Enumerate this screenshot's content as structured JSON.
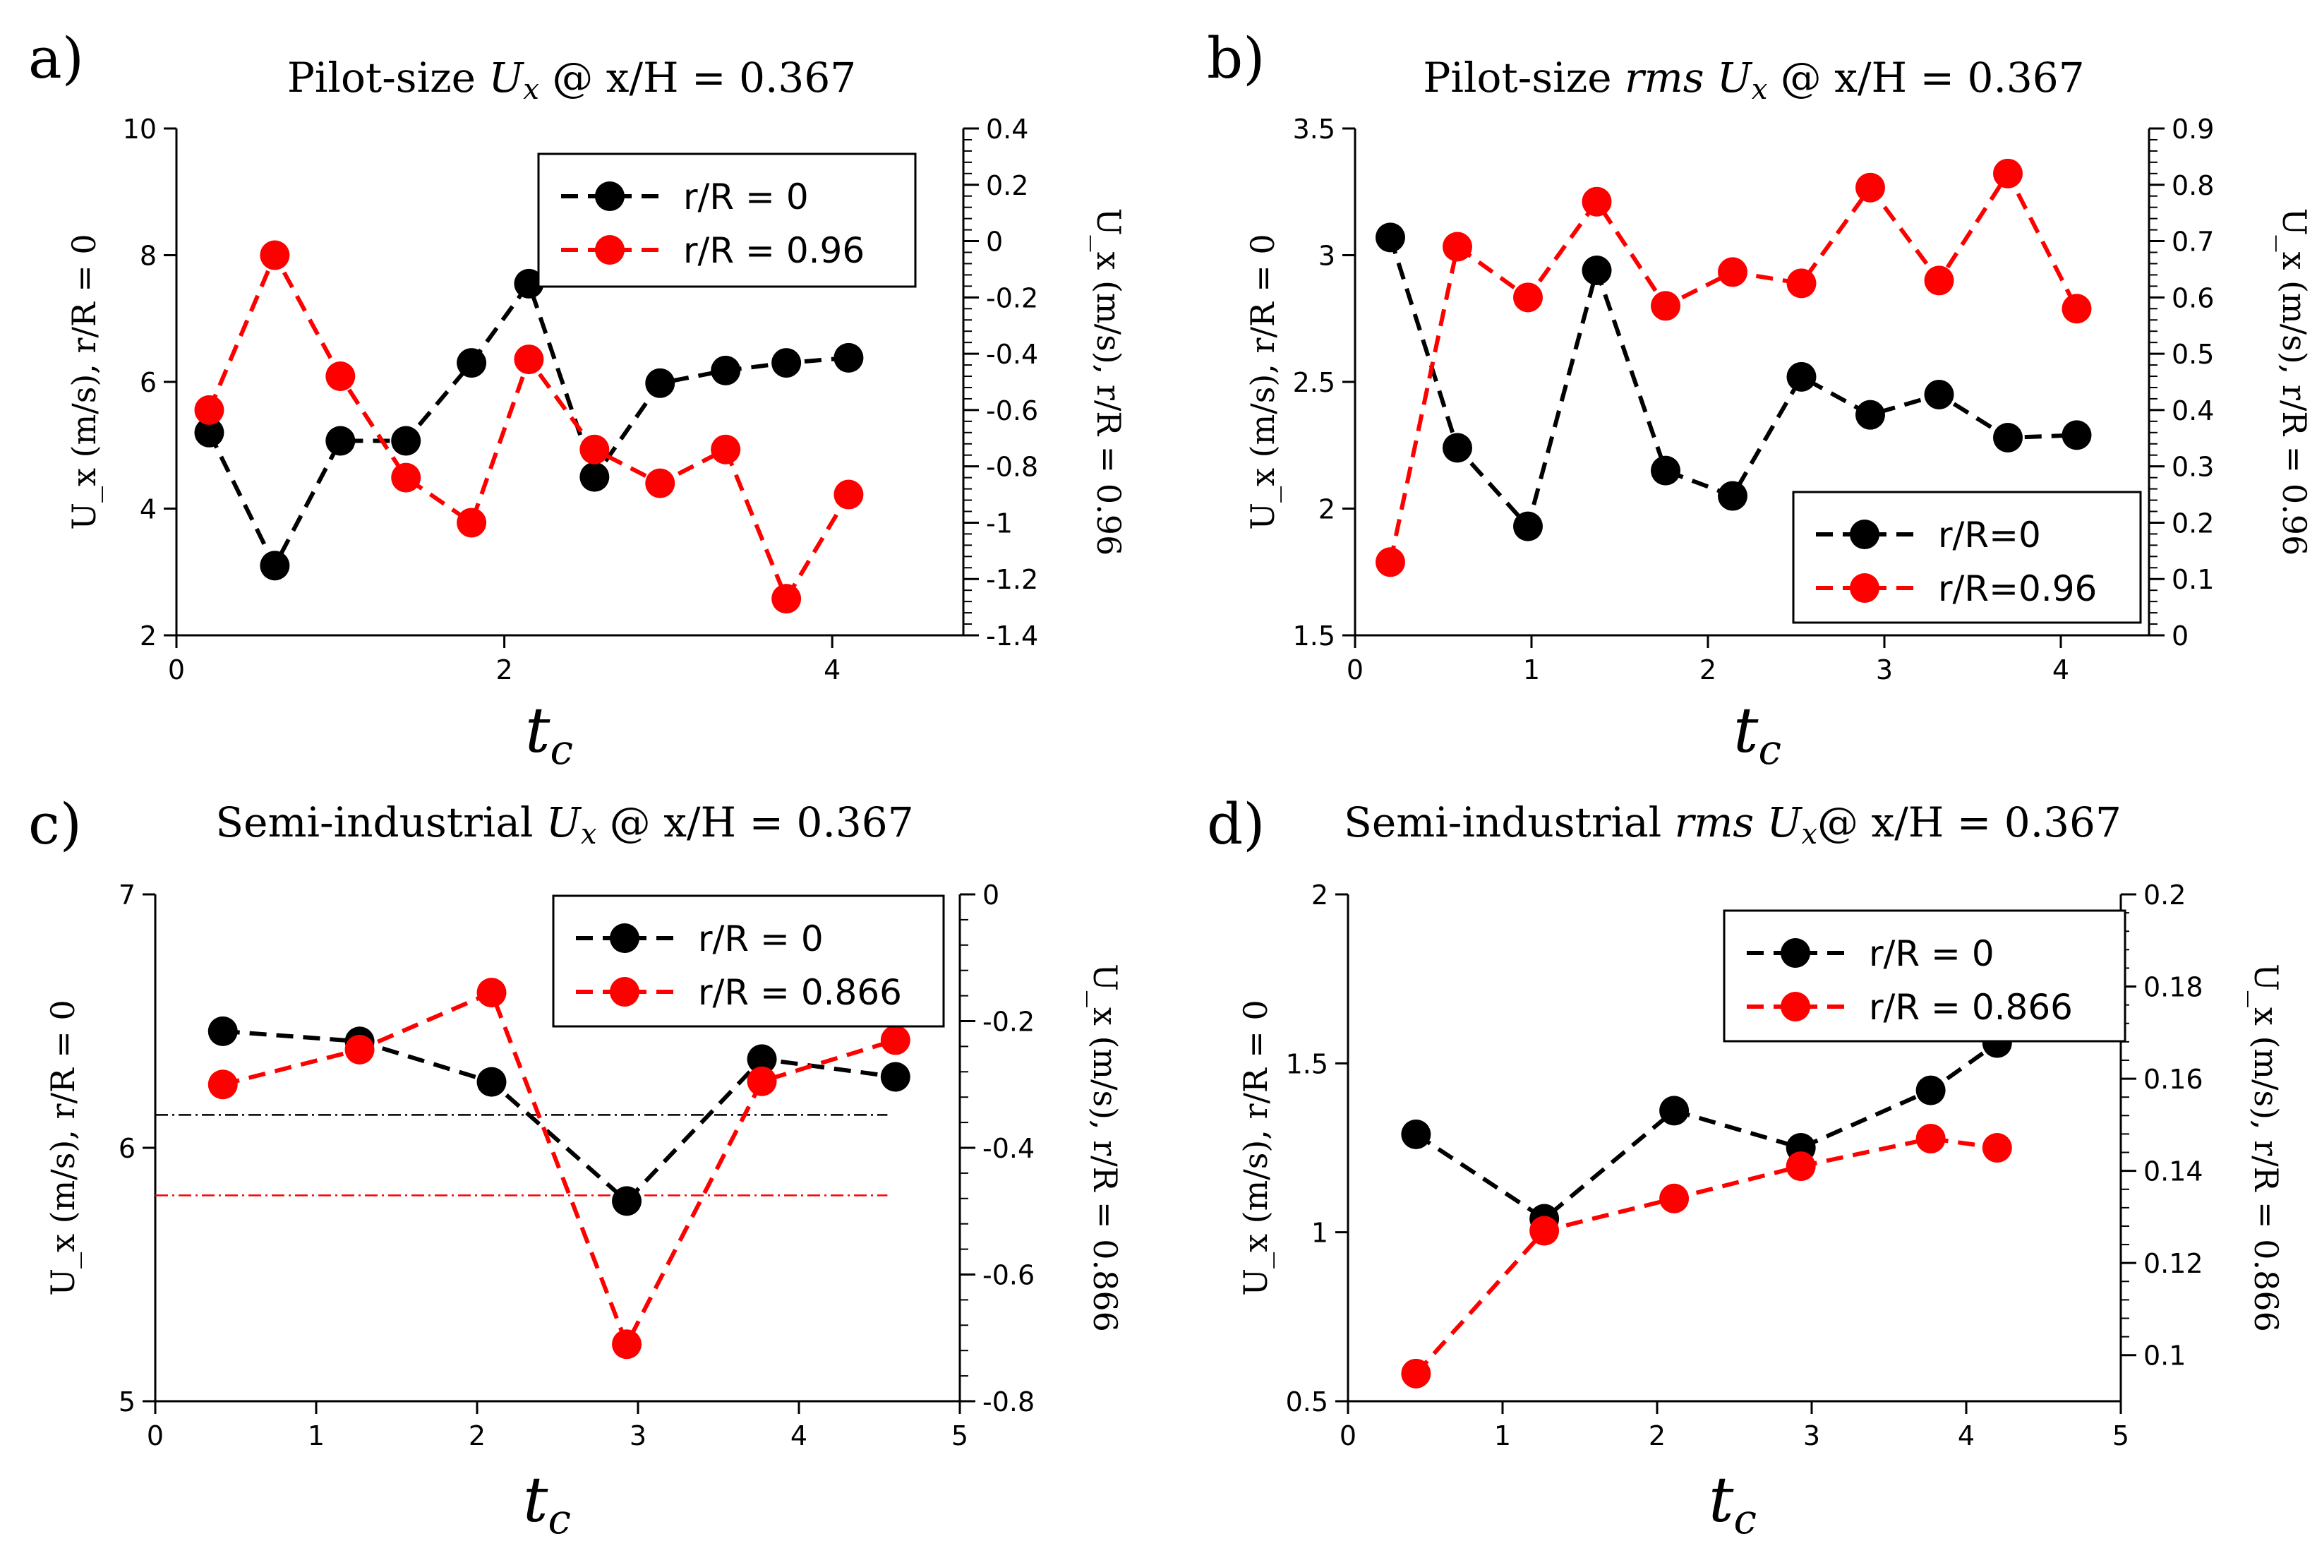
{
  "colors": {
    "series0": "#000000",
    "series1": "#ff0000",
    "axis": "#000000"
  },
  "chart_data": [
    {
      "panel_label": "a)",
      "type": "line",
      "title_parts": [
        "Pilot-size ",
        "U",
        "x",
        " @ x/H = 0.367"
      ],
      "xlabel": [
        "t",
        "c"
      ],
      "ylabel_left": "U_x (m/s), r/R = 0",
      "ylabel_right": "U_x (m/s), r/R = 0.96",
      "xlim": [
        0,
        4.8
      ],
      "xticks": [
        0,
        2,
        4
      ],
      "xtick_labels": [
        "0",
        "2",
        "4"
      ],
      "ylim_left": [
        2,
        10
      ],
      "yticks_left": [
        2,
        4,
        6,
        8,
        10
      ],
      "ytick_labels_left": [
        "2",
        "4",
        "6",
        "8",
        "10"
      ],
      "ylim_right": [
        -1.4,
        0.4
      ],
      "yticks_right": [
        -1.4,
        -1.2,
        -1,
        -0.8,
        -0.6,
        -0.4,
        -0.2,
        0,
        0.2,
        0.4
      ],
      "ytick_labels_right": [
        "-1.4",
        "-1.2",
        "-1",
        "-0.8",
        "-0.6",
        "-0.4",
        "-0.2",
        "0",
        "0.2",
        "0.4"
      ],
      "legend_position": "top-right",
      "series": [
        {
          "name": "r/R = 0",
          "axis": "left",
          "color": "#000000",
          "x": [
            0.2,
            0.6,
            1.0,
            1.4,
            1.8,
            2.15,
            2.55,
            2.95,
            3.35,
            3.72,
            4.1
          ],
          "values": [
            5.2,
            3.1,
            5.07,
            5.07,
            6.3,
            7.55,
            4.5,
            5.98,
            6.18,
            6.3,
            6.38
          ]
        },
        {
          "name": "r/R = 0.96",
          "axis": "right",
          "color": "#ff0000",
          "x": [
            0.2,
            0.6,
            1.0,
            1.4,
            1.8,
            2.15,
            2.55,
            2.95,
            3.35,
            3.72,
            4.1
          ],
          "values": [
            -0.6,
            -0.05,
            -0.48,
            -0.84,
            -1.0,
            -0.42,
            -0.74,
            -0.86,
            -0.74,
            -1.27,
            -0.9
          ]
        }
      ]
    },
    {
      "panel_label": "b)",
      "type": "line",
      "title_parts": [
        "Pilot-size ",
        "rms",
        " ",
        "U",
        "x",
        " @ x/H = 0.367"
      ],
      "xlabel": [
        "t",
        "c"
      ],
      "ylabel_left": "U_x (m/s), r/R = 0",
      "ylabel_right": "U_x (m/s), r/R = 0.96",
      "xlim": [
        0,
        4.5
      ],
      "xticks": [
        0,
        1,
        2,
        3,
        4
      ],
      "xtick_labels": [
        "0",
        "1",
        "2",
        "3",
        "4"
      ],
      "ylim_left": [
        1.5,
        3.5
      ],
      "yticks_left": [
        1.5,
        2,
        2.5,
        3,
        3.5
      ],
      "ytick_labels_left": [
        "1.5",
        "2",
        "2.5",
        "3",
        "3.5"
      ],
      "ylim_right": [
        0,
        0.9
      ],
      "yticks_right": [
        0,
        0.1,
        0.2,
        0.3,
        0.4,
        0.5,
        0.6,
        0.7,
        0.8,
        0.9
      ],
      "ytick_labels_right": [
        "0",
        "0.1",
        "0.2",
        "0.3",
        "0.4",
        "0.5",
        "0.6",
        "0.7",
        "0.8",
        "0.9"
      ],
      "legend_position": "bottom-right",
      "series": [
        {
          "name": "r/R=0",
          "axis": "left",
          "color": "#000000",
          "x": [
            0.2,
            0.58,
            0.98,
            1.37,
            1.76,
            2.14,
            2.53,
            2.92,
            3.31,
            3.7,
            4.09
          ],
          "values": [
            3.07,
            2.24,
            1.93,
            2.94,
            2.15,
            2.05,
            2.52,
            2.37,
            2.45,
            2.28,
            2.29
          ]
        },
        {
          "name": "r/R=0.96",
          "axis": "right",
          "color": "#ff0000",
          "x": [
            0.2,
            0.58,
            0.98,
            1.37,
            1.76,
            2.14,
            2.53,
            2.92,
            3.31,
            3.7,
            4.09
          ],
          "values": [
            0.13,
            0.69,
            0.6,
            0.77,
            0.585,
            0.645,
            0.625,
            0.795,
            0.63,
            0.82,
            0.58
          ]
        }
      ]
    },
    {
      "panel_label": "c)",
      "type": "line",
      "title_parts": [
        "Semi-industrial ",
        "U",
        "x",
        " @ x/H = 0.367"
      ],
      "xlabel": [
        "t",
        "c"
      ],
      "ylabel_left": "U_x (m/s), r/R = 0",
      "ylabel_right": "U_x (m/s), r/R = 0.866",
      "xlim": [
        0,
        5
      ],
      "xticks": [
        0,
        1,
        2,
        3,
        4,
        5
      ],
      "xtick_labels": [
        "0",
        "1",
        "2",
        "3",
        "4",
        "5"
      ],
      "ylim_left": [
        5,
        7
      ],
      "yticks_left": [
        5,
        6,
        7
      ],
      "ytick_labels_left": [
        "5",
        "6",
        "7"
      ],
      "ylim_right": [
        -0.8,
        0
      ],
      "yticks_right": [
        -0.8,
        -0.6,
        -0.4,
        -0.2,
        0
      ],
      "ytick_labels_right": [
        "-0.8",
        "-0.6",
        "-0.4",
        "-0.2",
        "0"
      ],
      "legend_position": "top-right",
      "series": [
        {
          "name": "r/R = 0",
          "axis": "left",
          "color": "#000000",
          "x": [
            0.42,
            1.27,
            2.09,
            2.93,
            3.77,
            4.6
          ],
          "values": [
            6.46,
            6.42,
            6.26,
            5.79,
            6.35,
            6.28
          ]
        },
        {
          "name": "r/R = 0.866",
          "axis": "right",
          "color": "#ff0000",
          "x": [
            0.42,
            1.27,
            2.09,
            2.93,
            3.77,
            4.6
          ],
          "values": [
            -0.3,
            -0.245,
            -0.155,
            -0.71,
            -0.295,
            -0.23
          ]
        }
      ],
      "reference_lines": [
        {
          "axis": "left",
          "value": 6.13,
          "color": "#000000",
          "x_range": [
            0,
            4.55
          ]
        },
        {
          "axis": "right",
          "value": -0.475,
          "color": "#ff0000",
          "x_range": [
            0,
            4.55
          ]
        }
      ]
    },
    {
      "panel_label": "d)",
      "type": "line",
      "title_parts": [
        "Semi-industrial ",
        "rms",
        " ",
        "U",
        "x",
        "@ x/H = 0.367"
      ],
      "xlabel": [
        "t",
        "c"
      ],
      "ylabel_left": "U_x (m/s), r/R = 0",
      "ylabel_right": "U_x (m/s), r/R = 0.866",
      "xlim": [
        0,
        5
      ],
      "xticks": [
        0,
        1,
        2,
        3,
        4,
        5
      ],
      "xtick_labels": [
        "0",
        "1",
        "2",
        "3",
        "4",
        "5"
      ],
      "ylim_left": [
        0.5,
        2
      ],
      "yticks_left": [
        0.5,
        1,
        1.5,
        2
      ],
      "ytick_labels_left": [
        "0.5",
        "1",
        "1.5",
        "2"
      ],
      "ylim_right": [
        0.09,
        0.2
      ],
      "yticks_right": [
        0.1,
        0.12,
        0.14,
        0.16,
        0.18,
        0.2
      ],
      "ytick_labels_right": [
        "0.1",
        "0.12",
        "0.14",
        "0.16",
        "0.18",
        "0.2"
      ],
      "legend_position": "top-right",
      "series": [
        {
          "name": "r/R = 0",
          "axis": "left",
          "color": "#000000",
          "x": [
            0.44,
            1.27,
            2.11,
            2.93,
            3.77,
            4.2
          ],
          "values": [
            1.29,
            1.04,
            1.36,
            1.25,
            1.42,
            1.56
          ]
        },
        {
          "name": "r/R = 0.866",
          "axis": "right",
          "color": "#ff0000",
          "x": [
            0.44,
            1.27,
            2.11,
            2.93,
            3.77,
            4.2
          ],
          "values": [
            0.096,
            0.127,
            0.134,
            0.141,
            0.147,
            0.145
          ]
        }
      ]
    }
  ]
}
